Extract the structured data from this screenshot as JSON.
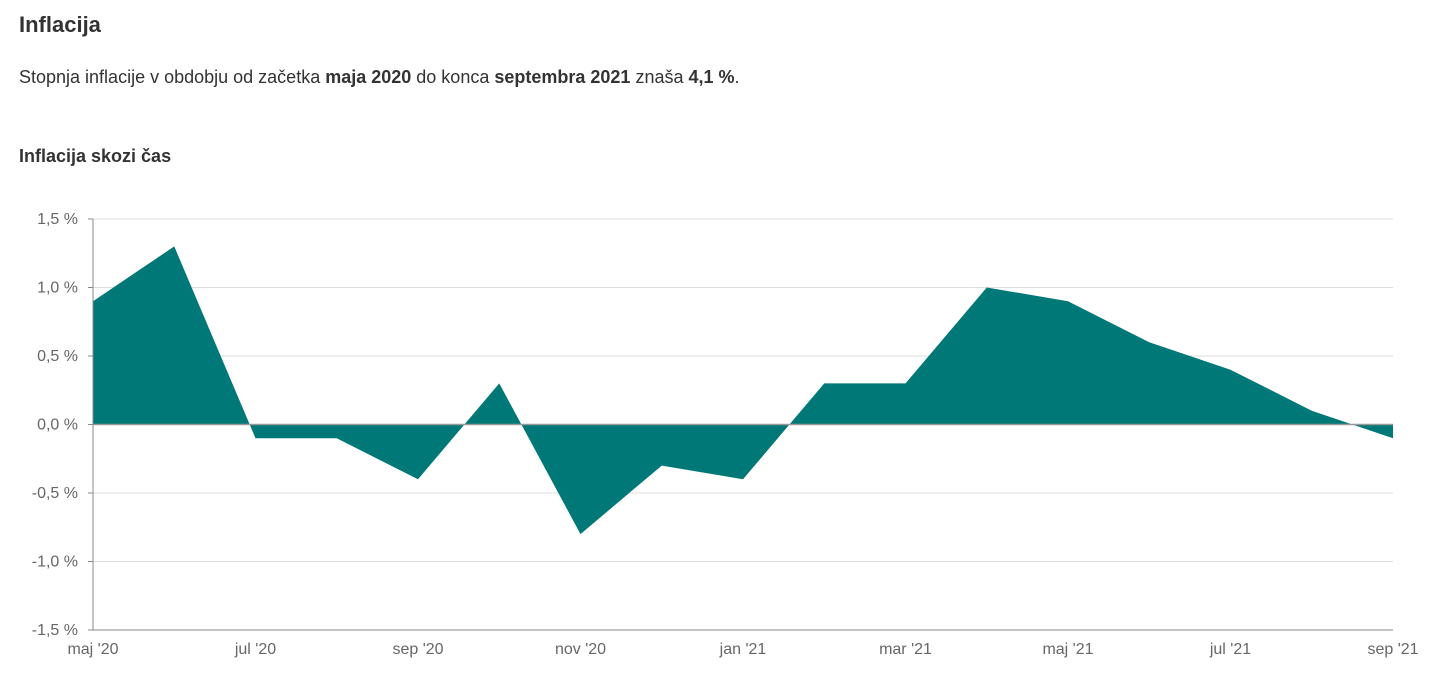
{
  "page": {
    "title": "Inflacija",
    "summary": {
      "p1": "Stopnja inflacije v obdobju od začetka ",
      "b1": "maja 2020",
      "p2": " do konca ",
      "b2": "septembra 2021",
      "p3": " znaša ",
      "b3": "4,1 %",
      "p4": "."
    },
    "chart_title": "Inflacija skozi čas"
  },
  "colors": {
    "area_fill": "#007878",
    "grid": "#dddddd",
    "axis": "#888888",
    "zero_line": "#999999"
  },
  "chart_data": {
    "type": "area",
    "title": "Inflacija skozi čas",
    "xlabel": "",
    "ylabel": "",
    "x": [
      "maj '20",
      "jun '20",
      "jul '20",
      "avg '20",
      "sep '20",
      "okt '20",
      "nov '20",
      "dec '20",
      "jan '21",
      "feb '21",
      "mar '21",
      "apr '21",
      "maj '21",
      "jun '21",
      "jul '21",
      "avg '21",
      "sep '21"
    ],
    "values": [
      0.9,
      1.3,
      -0.1,
      -0.1,
      -0.4,
      0.3,
      -0.8,
      -0.3,
      -0.4,
      0.3,
      0.3,
      1.0,
      0.9,
      0.6,
      0.4,
      0.1,
      -0.1
    ],
    "x_tick_labels": [
      "maj '20",
      "jul '20",
      "sep '20",
      "nov '20",
      "jan '21",
      "mar '21",
      "maj '21",
      "jul '21",
      "sep '21"
    ],
    "y_ticks": [
      1.5,
      1.0,
      0.5,
      0.0,
      -0.5,
      -1.0,
      -1.5
    ],
    "y_tick_labels": [
      "1,5 %",
      "1,0 %",
      "0,5 %",
      "0,0 %",
      "-0,5 %",
      "-1,0 %",
      "-1,5 %"
    ],
    "ylim": [
      -1.5,
      1.5
    ],
    "grid": true,
    "legend": "none"
  }
}
